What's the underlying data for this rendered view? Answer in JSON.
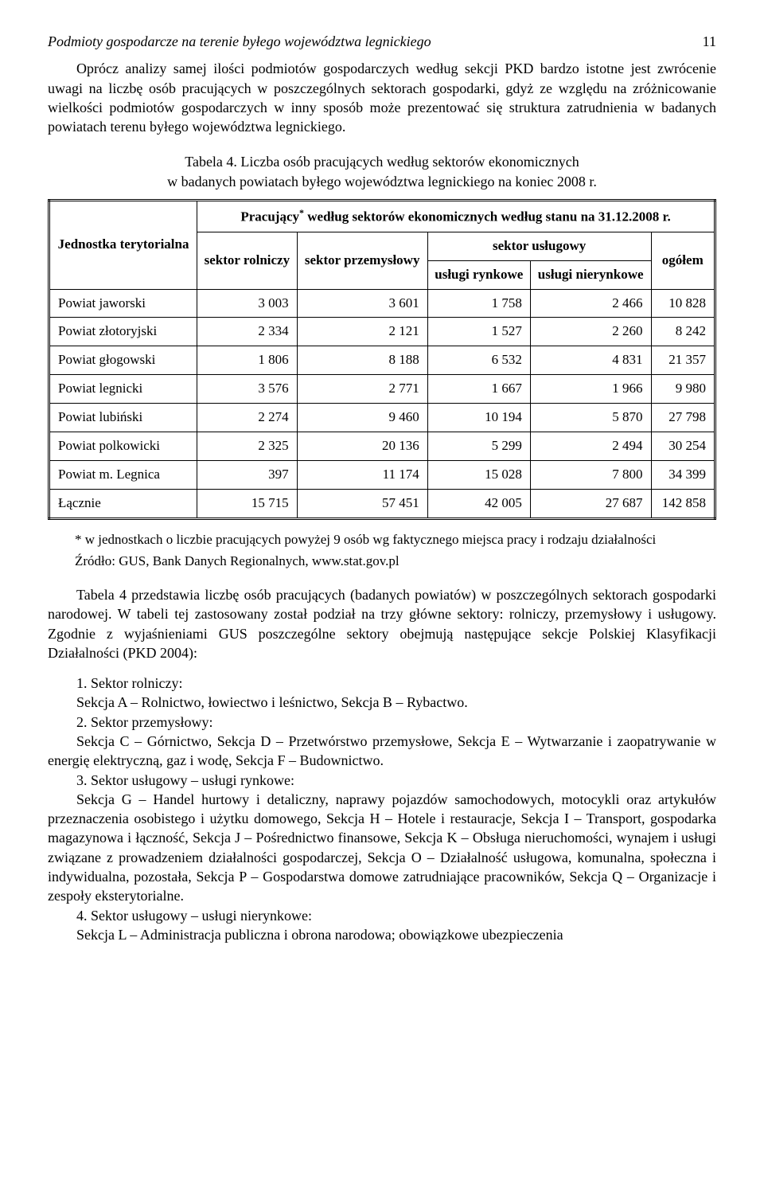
{
  "header": {
    "title": "Podmioty gospodarcze na terenie byłego województwa legnickiego",
    "page_number": "11"
  },
  "paragraph1": "Oprócz analizy samej ilości podmiotów gospodarczych według sekcji PKD bardzo istotne jest zwrócenie uwagi na liczbę osób pracujących w poszczególnych sektorach gospodarki, gdyż ze względu na zróżnicowanie wielkości podmiotów gospodarczych w inny sposób może prezentować się struktura zatrudnienia w badanych powiatach terenu byłego województwa legnickiego.",
  "table": {
    "caption_line1": "Tabela 4. Liczba osób pracujących według sektorów ekonomicznych",
    "caption_line2": "w badanych powiatach byłego województwa legnickiego na koniec 2008 r.",
    "header": {
      "col_unit": "Jednostka terytorialna",
      "top_header": "Pracujący* według sektorów ekonomicznych według stanu na 31.12.2008 r.",
      "col_agri": "sektor rolniczy",
      "col_industry": "sektor przemysłowy",
      "col_services": "sektor usługowy",
      "col_services_market": "usługi rynkowe",
      "col_services_nonmarket": "usługi nierynkowe",
      "col_total": "ogółem"
    },
    "rows": [
      {
        "name": "Powiat jaworski",
        "agri": "3 003",
        "ind": "3 601",
        "market": "1 758",
        "nonmarket": "2 466",
        "total": "10 828"
      },
      {
        "name": "Powiat złotoryjski",
        "agri": "2 334",
        "ind": "2 121",
        "market": "1 527",
        "nonmarket": "2 260",
        "total": "8 242"
      },
      {
        "name": "Powiat głogowski",
        "agri": "1 806",
        "ind": "8 188",
        "market": "6 532",
        "nonmarket": "4 831",
        "total": "21 357"
      },
      {
        "name": "Powiat legnicki",
        "agri": "3 576",
        "ind": "2 771",
        "market": "1 667",
        "nonmarket": "1 966",
        "total": "9 980"
      },
      {
        "name": "Powiat lubiński",
        "agri": "2 274",
        "ind": "9 460",
        "market": "10 194",
        "nonmarket": "5 870",
        "total": "27 798"
      },
      {
        "name": "Powiat polkowicki",
        "agri": "2 325",
        "ind": "20 136",
        "market": "5 299",
        "nonmarket": "2 494",
        "total": "30 254"
      },
      {
        "name": "Powiat m. Legnica",
        "agri": "397",
        "ind": "11 174",
        "market": "15 028",
        "nonmarket": "7 800",
        "total": "34 399"
      },
      {
        "name": "Łącznie",
        "agri": "15 715",
        "ind": "57 451",
        "market": "42 005",
        "nonmarket": "27 687",
        "total": "142 858"
      }
    ]
  },
  "footnote": "* w jednostkach o liczbie pracujących powyżej 9 osób wg faktycznego miejsca pracy i rodzaju działalności",
  "source": "Źródło: GUS, Bank Danych Regionalnych, www.stat.gov.pl",
  "paragraph2": "Tabela 4 przedstawia liczbę osób pracujących (badanych powiatów) w poszczególnych sektorach gospodarki narodowej. W tabeli tej zastosowany został podział na trzy główne sektory: rolniczy, przemysłowy i usługowy. Zgodnie z wyjaśnieniami GUS poszczególne sektory obejmują następujące sekcje Polskiej Klasyfikacji Działalności (PKD 2004):",
  "sectors": {
    "s1_title": "1. Sektor rolniczy:",
    "s1_body": "Sekcja A – Rolnictwo, łowiectwo i leśnictwo, Sekcja B – Rybactwo.",
    "s2_title": "2. Sektor przemysłowy:",
    "s2_body": "Sekcja C – Górnictwo, Sekcja D – Przetwórstwo przemysłowe, Sekcja E – Wytwarzanie i zaopatrywanie w energię elektryczną, gaz i wodę, Sekcja F – Budownictwo.",
    "s3_title": "3. Sektor usługowy – usługi rynkowe:",
    "s3_body": "Sekcja G – Handel hurtowy i detaliczny, naprawy pojazdów samochodowych, motocykli oraz artykułów przeznaczenia osobistego i użytku domowego, Sekcja H – Hotele i restauracje, Sekcja I – Transport, gospodarka magazynowa i łączność, Sekcja J – Pośrednictwo finansowe, Sekcja K – Obsługa nieruchomości, wynajem i usługi związane z prowadzeniem działalności gospodarczej, Sekcja O – Działalność usługowa, komunalna, społeczna i indywidualna, pozostała, Sekcja P – Gospodarstwa domowe zatrudniające pracowników, Sekcja Q – Organizacje i zespoły eksterytorialne.",
    "s4_title": "4. Sektor usługowy – usługi nierynkowe:",
    "s4_body": "Sekcja L – Administracja publiczna i obrona narodowa; obowiązkowe ubezpieczenia"
  }
}
